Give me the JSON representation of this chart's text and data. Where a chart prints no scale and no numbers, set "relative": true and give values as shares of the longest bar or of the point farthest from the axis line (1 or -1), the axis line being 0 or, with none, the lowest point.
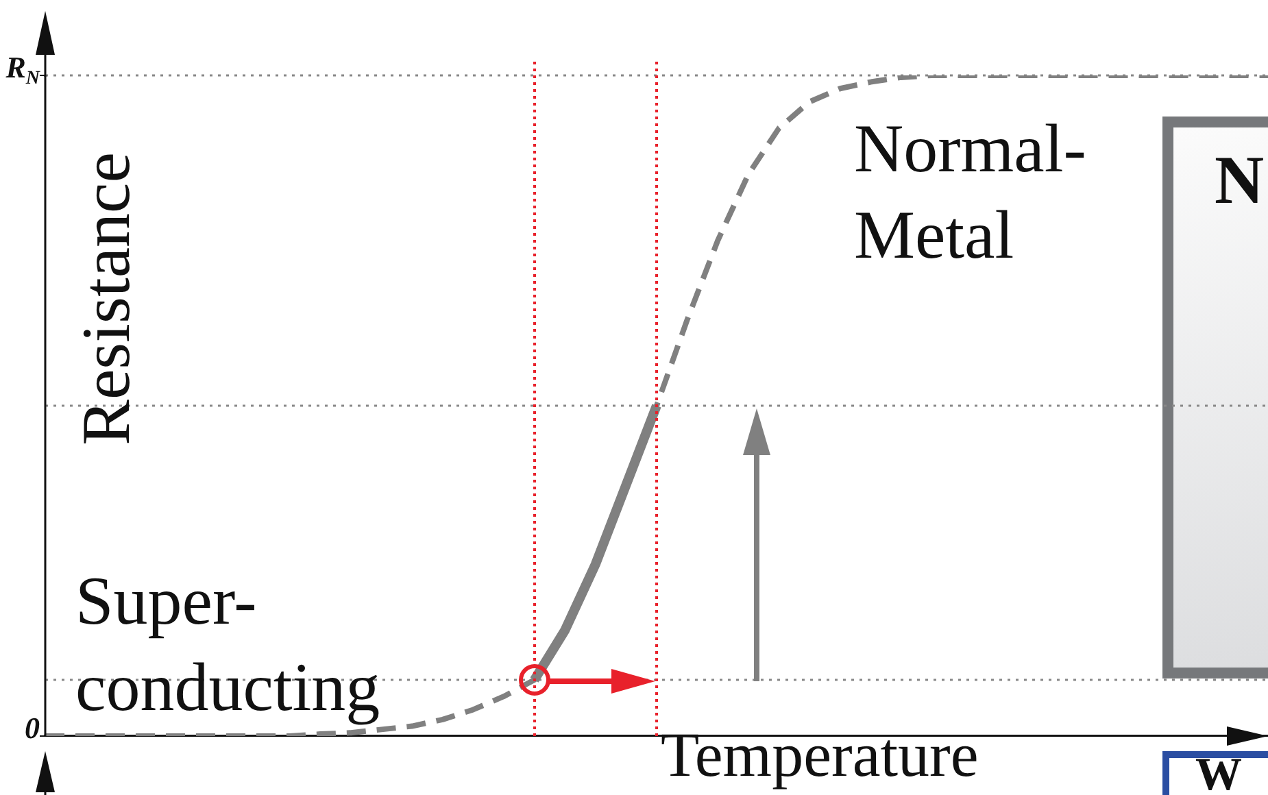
{
  "chart_data": {
    "type": "line",
    "xlabel": "Temperature",
    "ylabel": "Resistance",
    "categories": [
      null,
      null,
      null,
      null,
      null,
      null,
      null,
      null,
      null,
      null,
      null,
      null,
      null,
      null,
      null,
      null,
      null,
      null,
      null,
      null,
      null,
      null,
      null,
      null,
      null,
      null,
      null,
      null,
      null,
      null,
      null,
      null,
      null,
      null,
      null,
      null,
      null,
      null,
      null,
      null,
      null
    ],
    "relative": true,
    "grid": false,
    "legend": false,
    "series": [
      {
        "color": "#808080",
        "line_style": "dashed",
        "values": [
          0,
          0,
          0,
          0,
          0,
          0,
          0,
          0,
          0,
          0.003,
          0.005,
          0.01,
          0.015,
          0.025,
          0.04,
          0.06,
          0.085,
          0.16,
          0.26,
          0.38,
          0.5,
          0.63,
          0.75,
          0.85,
          0.92,
          0.96,
          0.98,
          0.99,
          0.997,
          1,
          1,
          1,
          1,
          1,
          1,
          1,
          1,
          1,
          1,
          1,
          1
        ]
      },
      {
        "color": "#808080",
        "line_style": "solid",
        "values": [
          null,
          null,
          null,
          null,
          null,
          null,
          null,
          null,
          null,
          null,
          null,
          null,
          null,
          null,
          null,
          null,
          0.085,
          0.16,
          0.26,
          0.38,
          0.5,
          null,
          null,
          null,
          null,
          null,
          null,
          null,
          null,
          null,
          null,
          null,
          null,
          null,
          null,
          null,
          null,
          null,
          null,
          null,
          null
        ]
      }
    ],
    "ref_lines": [
      {
        "axis": "y",
        "value": 1,
        "color": "#888888",
        "line_style": "dotted"
      },
      {
        "axis": "y",
        "value": 0.5,
        "color": "#888888",
        "line_style": "dotted"
      },
      {
        "axis": "y",
        "value": 0.085,
        "color": "#888888",
        "line_style": "dotted"
      }
    ],
    "annotations": [
      "Super-\nconducting",
      "Normal-\nMetal",
      "N",
      "W",
      "0",
      "R$_{N}$"
    ]
  }
}
